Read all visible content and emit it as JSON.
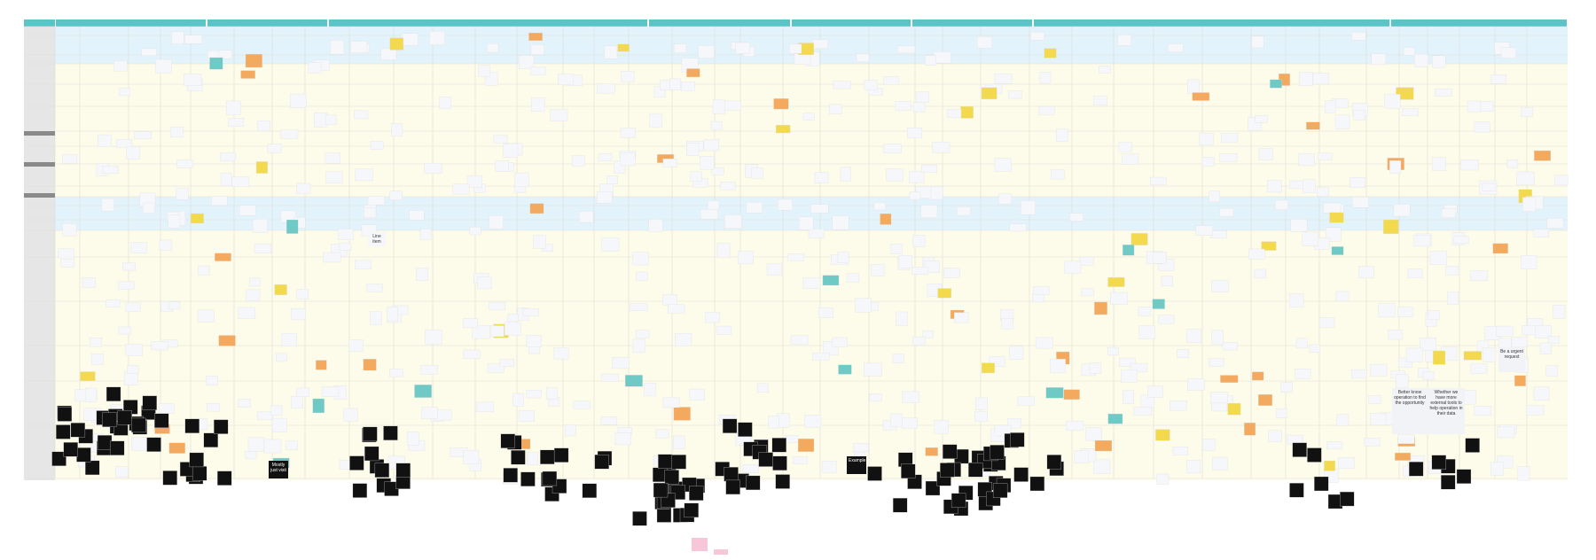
{
  "notes": [
    {
      "text": "Better know operation to find the opportunity"
    },
    {
      "text": "Whether we have more external tools to help operation in their data"
    },
    {
      "text": "Be a urgent request"
    },
    {
      "text": "Mostly just visit"
    },
    {
      "text": "Example"
    },
    {
      "text": "Line item"
    }
  ]
}
